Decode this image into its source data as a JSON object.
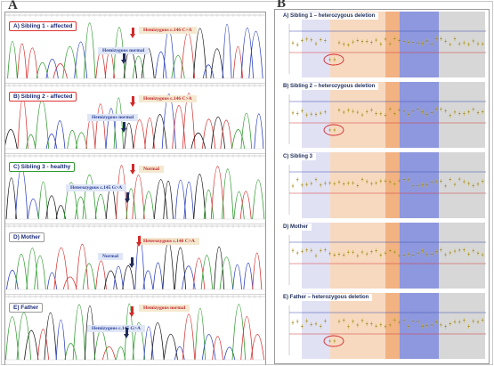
{
  "panel_a": {
    "letter": "A",
    "traces": [
      {
        "label": "A) Sibling 1 - affected",
        "border": "red",
        "tags": [
          {
            "text": "Hemizygous c.146 C>A",
            "color": "red"
          },
          {
            "text": "Hemizygous normal",
            "color": "blue"
          }
        ],
        "red_arrow": true,
        "navy_arrow": true
      },
      {
        "label": "B) Sibling 2 - affected",
        "border": "red",
        "tags": [
          {
            "text": "Hemizygous c.146 C>A",
            "color": "red"
          },
          {
            "text": "Hemizygous normal",
            "color": "blue"
          }
        ],
        "red_arrow": true,
        "navy_arrow": true
      },
      {
        "label": "C) Sibling 3 - healthy",
        "border": "green",
        "tags": [
          {
            "text": "Normal",
            "color": "red"
          },
          {
            "text": "Heterozygous c.145 G>A",
            "color": "blue"
          }
        ],
        "red_arrow": true,
        "navy_arrow": true
      },
      {
        "label": "D) Mother",
        "border": "gray",
        "tags": [
          {
            "text": "Heterozygous c.146 C>A",
            "color": "red"
          },
          {
            "text": "Normal",
            "color": "blue"
          }
        ],
        "red_arrow": true,
        "navy_arrow": true
      },
      {
        "label": "E) Father",
        "border": "gray",
        "tags": [
          {
            "text": "Hemizygous normal",
            "color": "red"
          },
          {
            "text": "Hemizygous c.145 G>A",
            "color": "blue"
          }
        ],
        "red_arrow": true,
        "navy_arrow": true
      }
    ]
  },
  "panel_b": {
    "letter": "B",
    "plots": [
      {
        "title": "A) Sibling 1  – heterozygous deletion",
        "deletion": true
      },
      {
        "title": "B) Sibling 2 – heterozygous deletion",
        "deletion": true
      },
      {
        "title": "C) Sibling 3",
        "deletion": false
      },
      {
        "title": "D) Mother",
        "deletion": false
      },
      {
        "title": "E) Father – heterozygous deletion",
        "deletion": true
      }
    ],
    "colors": {
      "lavender": "#dcdcf2",
      "orange": "#f6d2b4",
      "deep_orange": "#f0a56c",
      "blue": "#7a86d8",
      "gray": "#d0d0d0",
      "threshold": "#d43a3a",
      "upper": "#3a4fb0",
      "marker": "#c9b23a",
      "circle": "#d42a2a"
    }
  }
}
